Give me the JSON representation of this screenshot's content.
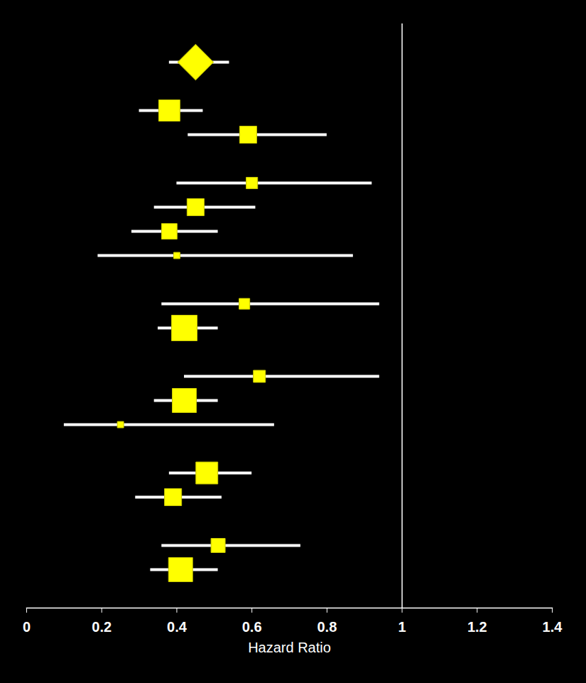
{
  "chart_data": {
    "type": "forest",
    "x_label": "Hazard Ratio",
    "xlim": [
      0,
      1.4
    ],
    "xticks": [
      0,
      0.2,
      0.4,
      0.6,
      0.8,
      1,
      1.2,
      1.4
    ],
    "reference_line": 1,
    "grid": false,
    "tick_labels": "x",
    "categories": [
      null,
      null,
      null,
      null,
      null,
      null,
      null,
      null,
      null,
      null,
      null,
      null,
      null,
      null,
      null,
      null,
      null,
      null,
      null,
      null,
      null,
      null
    ],
    "series": [
      {
        "marker": "diamond",
        "color": "#ffff00",
        "values": [
          0.45,
          null,
          null,
          null,
          null,
          null,
          null,
          null,
          null,
          null,
          null,
          null,
          null,
          null,
          null,
          null,
          null,
          null,
          null,
          null,
          null,
          null
        ],
        "lower": [
          0.38,
          null,
          null,
          null,
          null,
          null,
          null,
          null,
          null,
          null,
          null,
          null,
          null,
          null,
          null,
          null,
          null,
          null,
          null,
          null,
          null,
          null
        ],
        "upper": [
          0.54,
          null,
          null,
          null,
          null,
          null,
          null,
          null,
          null,
          null,
          null,
          null,
          null,
          null,
          null,
          null,
          null,
          null,
          null,
          null,
          null,
          null
        ]
      },
      {
        "marker": "square",
        "color": "#ffff00",
        "values": [
          null,
          null,
          0.38,
          0.59,
          null,
          0.6,
          0.45,
          0.38,
          0.4,
          null,
          0.58,
          0.42,
          null,
          0.62,
          0.42,
          0.25,
          null,
          0.48,
          0.39,
          null,
          0.51,
          0.41
        ],
        "lower": [
          null,
          null,
          0.3,
          0.43,
          null,
          0.4,
          0.34,
          0.28,
          0.19,
          null,
          0.36,
          0.35,
          null,
          0.42,
          0.34,
          0.1,
          null,
          0.38,
          0.29,
          null,
          0.36,
          0.33
        ],
        "upper": [
          null,
          null,
          0.47,
          0.8,
          null,
          0.92,
          0.61,
          0.51,
          0.87,
          null,
          0.94,
          0.51,
          null,
          0.94,
          0.51,
          0.66,
          null,
          0.6,
          0.52,
          null,
          0.73,
          0.51
        ],
        "weights": [
          null,
          null,
          90,
          58,
          null,
          26,
          58,
          48,
          8,
          null,
          23,
          130,
          null,
          29,
          116,
          8,
          null,
          96,
          58,
          null,
          40,
          116
        ]
      }
    ]
  }
}
